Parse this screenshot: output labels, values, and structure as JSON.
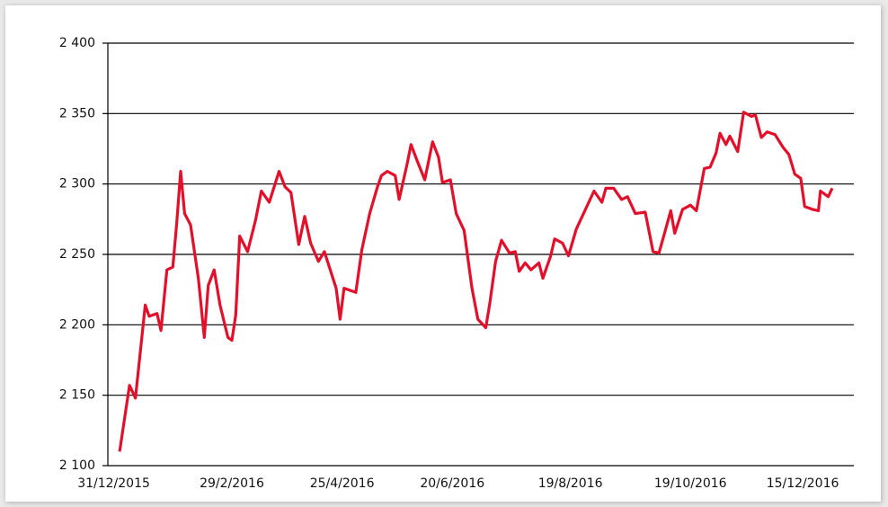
{
  "chart_data": {
    "type": "line",
    "x": [
      "3/1/2016",
      "8/1/2016",
      "11/1/2016",
      "16/1/2016",
      "18/1/2016",
      "22/1/2016",
      "24/1/2016",
      "27/1/2016",
      "30/1/2016",
      "1/2/2016",
      "3/2/2016",
      "5/2/2016",
      "8/2/2016",
      "12/2/2016",
      "15/2/2016",
      "17/2/2016",
      "20/2/2016",
      "23/2/2016",
      "27/2/2016",
      "29/2/2016",
      "2/3/2016",
      "4/3/2016",
      "8/3/2016",
      "12/3/2016",
      "15/3/2016",
      "19/3/2016",
      "24/3/2016",
      "27/3/2016",
      "30/3/2016",
      "3/4/2016",
      "6/4/2016",
      "9/4/2016",
      "13/4/2016",
      "16/4/2016",
      "22/4/2016",
      "24/4/2016",
      "26/4/2016",
      "2/5/2016",
      "5/5/2016",
      "9/5/2016",
      "13/5/2016",
      "15/5/2016",
      "18/5/2016",
      "22/5/2016",
      "24/5/2016",
      "28/5/2016",
      "30/5/2016",
      "2/6/2016",
      "6/6/2016",
      "10/6/2016",
      "13/6/2016",
      "15/6/2016",
      "19/6/2016",
      "22/6/2016",
      "26/6/2016",
      "30/6/2016",
      "3/7/2016",
      "7/7/2016",
      "9/7/2016",
      "12/7/2016",
      "15/7/2016",
      "19/7/2016",
      "22/7/2016",
      "24/7/2016",
      "27/7/2016",
      "30/7/2016",
      "3/8/2016",
      "5/8/2016",
      "9/8/2016",
      "11/8/2016",
      "15/8/2016",
      "18/8/2016",
      "22/8/2016",
      "25/8/2016",
      "31/8/2016",
      "4/9/2016",
      "6/9/2016",
      "10/9/2016",
      "14/9/2016",
      "17/9/2016",
      "21/9/2016",
      "26/9/2016",
      "30/9/2016",
      "3/10/2016",
      "6/10/2016",
      "9/10/2016",
      "11/10/2016",
      "15/10/2016",
      "19/10/2016",
      "22/10/2016",
      "26/10/2016",
      "29/10/2016",
      "1/11/2016",
      "3/11/2016",
      "6/11/2016",
      "8/11/2016",
      "12/11/2016",
      "15/11/2016",
      "19/11/2016",
      "21/11/2016",
      "24/11/2016",
      "27/11/2016",
      "1/12/2016",
      "5/12/2016",
      "8/12/2016",
      "11/12/2016",
      "14/12/2016",
      "16/12/2016",
      "20/12/2016",
      "23/12/2016",
      "24/12/2016",
      "28/12/2016",
      "30/12/2016"
    ],
    "series": [
      {
        "color": "#e2102b",
        "values": [
          2110,
          2157,
          2148,
          2214,
          2206,
          2208,
          2196,
          2239,
          2241,
          2272,
          2309,
          2279,
          2271,
          2233,
          2191,
          2228,
          2239,
          2214,
          2191,
          2189,
          2207,
          2263,
          2252,
          2274,
          2295,
          2287,
          2309,
          2298,
          2294,
          2257,
          2277,
          2258,
          2245,
          2252,
          2226,
          2204,
          2226,
          2223,
          2253,
          2279,
          2298,
          2306,
          2309,
          2306,
          2289,
          2314,
          2328,
          2317,
          2303,
          2330,
          2319,
          2301,
          2303,
          2279,
          2267,
          2226,
          2204,
          2198,
          2215,
          2245,
          2260,
          2251,
          2252,
          2238,
          2244,
          2239,
          2244,
          2233,
          2249,
          2261,
          2258,
          2249,
          2268,
          2277,
          2295,
          2287,
          2297,
          2297,
          2289,
          2291,
          2279,
          2280,
          2252,
          2251,
          2266,
          2281,
          2265,
          2282,
          2285,
          2281,
          2311,
          2312,
          2322,
          2336,
          2328,
          2334,
          2323,
          2351,
          2348,
          2349,
          2333,
          2337,
          2335,
          2326,
          2321,
          2307,
          2304,
          2284,
          2282,
          2281,
          2295,
          2291,
          2297
        ]
      }
    ],
    "xlim": [
      "28/12/2015",
      "10/1/2017"
    ],
    "xticks": [
      "31/12/2015",
      "29/2/2016",
      "25/4/2016",
      "20/6/2016",
      "19/8/2016",
      "19/10/2016",
      "15/12/2016"
    ],
    "ylim": [
      2100,
      2400
    ],
    "yticks": [
      {
        "value": 2100,
        "label": "2 100"
      },
      {
        "value": 2150,
        "label": "2 150"
      },
      {
        "value": 2200,
        "label": "2 200"
      },
      {
        "value": 2250,
        "label": "2 250"
      },
      {
        "value": 2300,
        "label": "2 300"
      },
      {
        "value": 2350,
        "label": "2 350"
      },
      {
        "value": 2400,
        "label": "2 400"
      }
    ],
    "grid": true
  }
}
